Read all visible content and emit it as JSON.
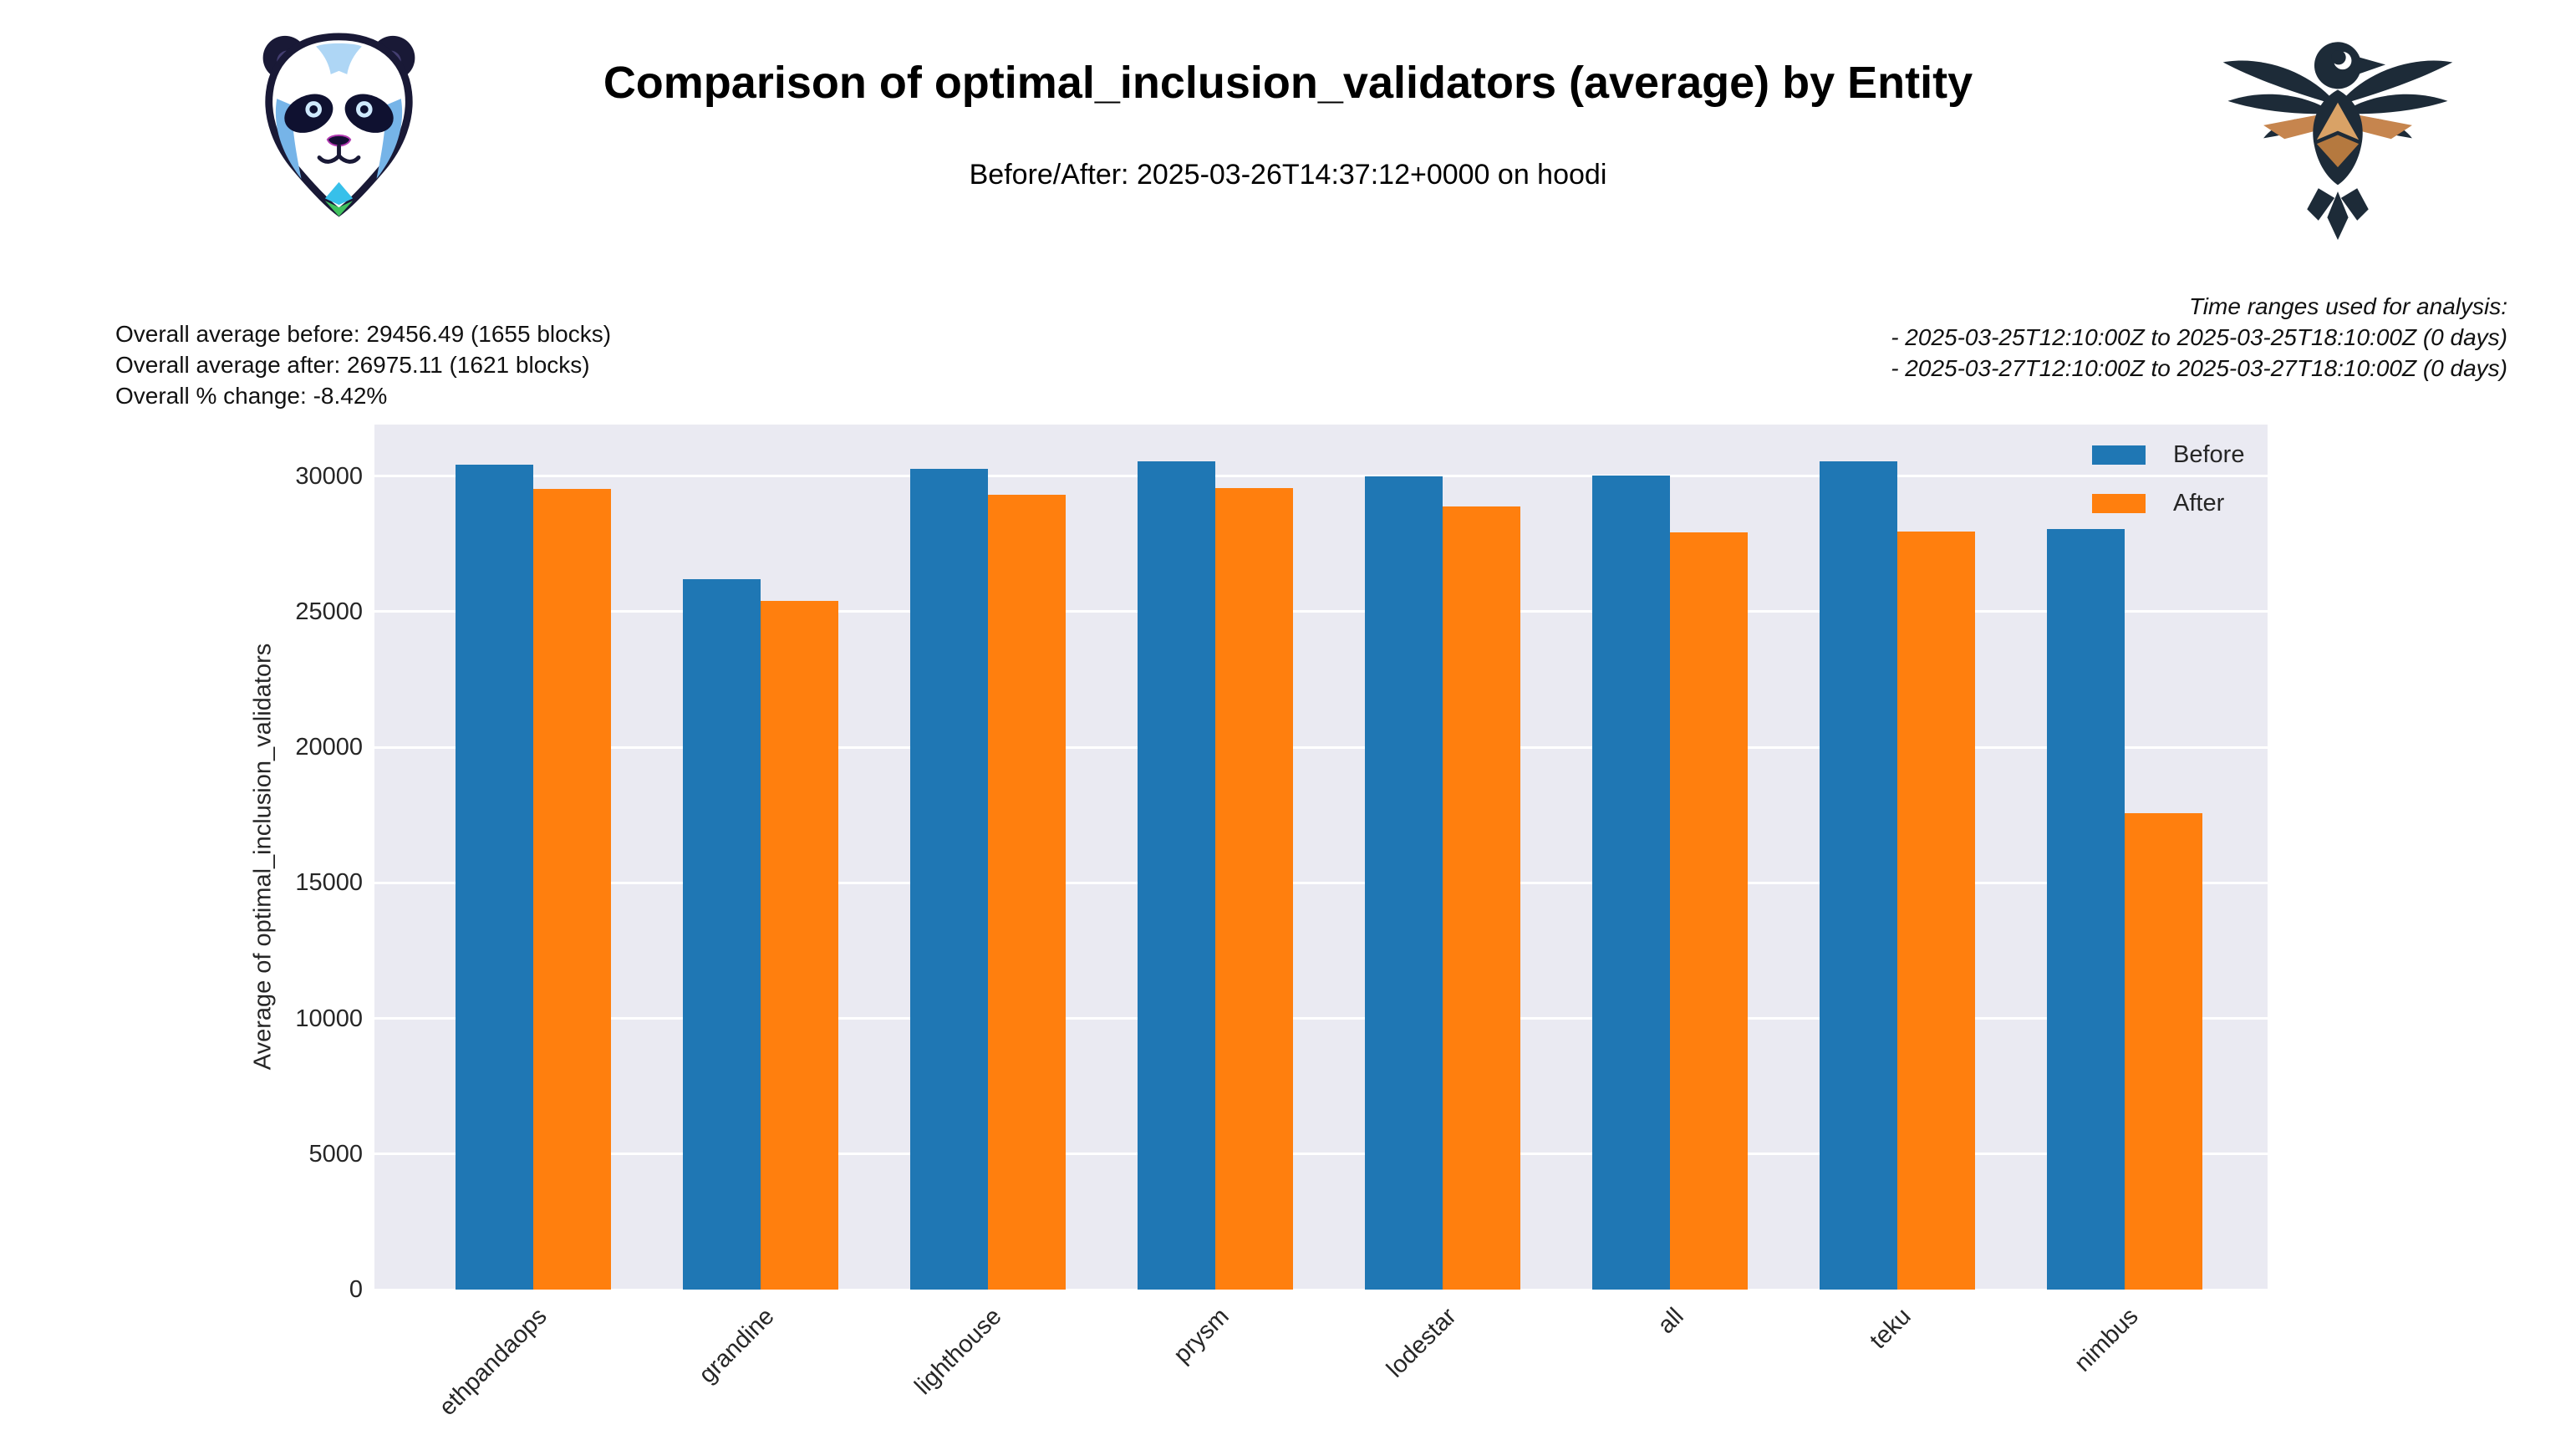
{
  "header": {
    "left_logo_icon": "panda-logo-icon",
    "right_logo_icon": "eagle-logo-icon"
  },
  "stats": {
    "before": "Overall average before: 29456.49 (1655 blocks)",
    "after": "Overall average after: 26975.11 (1621 blocks)",
    "change": "Overall % change: -8.42%"
  },
  "time_ranges": {
    "heading": "Time ranges used for analysis:",
    "range1": "- 2025-03-25T12:10:00Z to 2025-03-25T18:10:00Z (0 days)",
    "range2": "- 2025-03-27T12:10:00Z to 2025-03-27T18:10:00Z (0 days)"
  },
  "chart_data": {
    "type": "bar",
    "title": "Comparison of optimal_inclusion_validators (average) by Entity",
    "subtitle": "Before/After: 2025-03-26T14:37:12+0000 on hoodi",
    "categories": [
      "ethpandaops",
      "grandine",
      "lighthouse",
      "prysm",
      "lodestar",
      "all",
      "teku",
      "nimbus"
    ],
    "series": [
      {
        "name": "Before",
        "color": "#1f77b4",
        "values": [
          30430,
          26210,
          30280,
          30550,
          29990,
          30030,
          30550,
          28060
        ]
      },
      {
        "name": "After",
        "color": "#ff7f0e",
        "values": [
          29540,
          25410,
          29320,
          29570,
          28890,
          27930,
          27960,
          17580
        ]
      }
    ],
    "xlabel": "",
    "ylabel": "Average of optimal_inclusion_validators",
    "yticks": [
      0,
      5000,
      10000,
      15000,
      20000,
      25000,
      30000
    ],
    "ylim": [
      0,
      31900
    ],
    "grid": true,
    "legend_position": "upper right",
    "plot_background": "#eaeaf2",
    "gridline_color": "#ffffff"
  }
}
